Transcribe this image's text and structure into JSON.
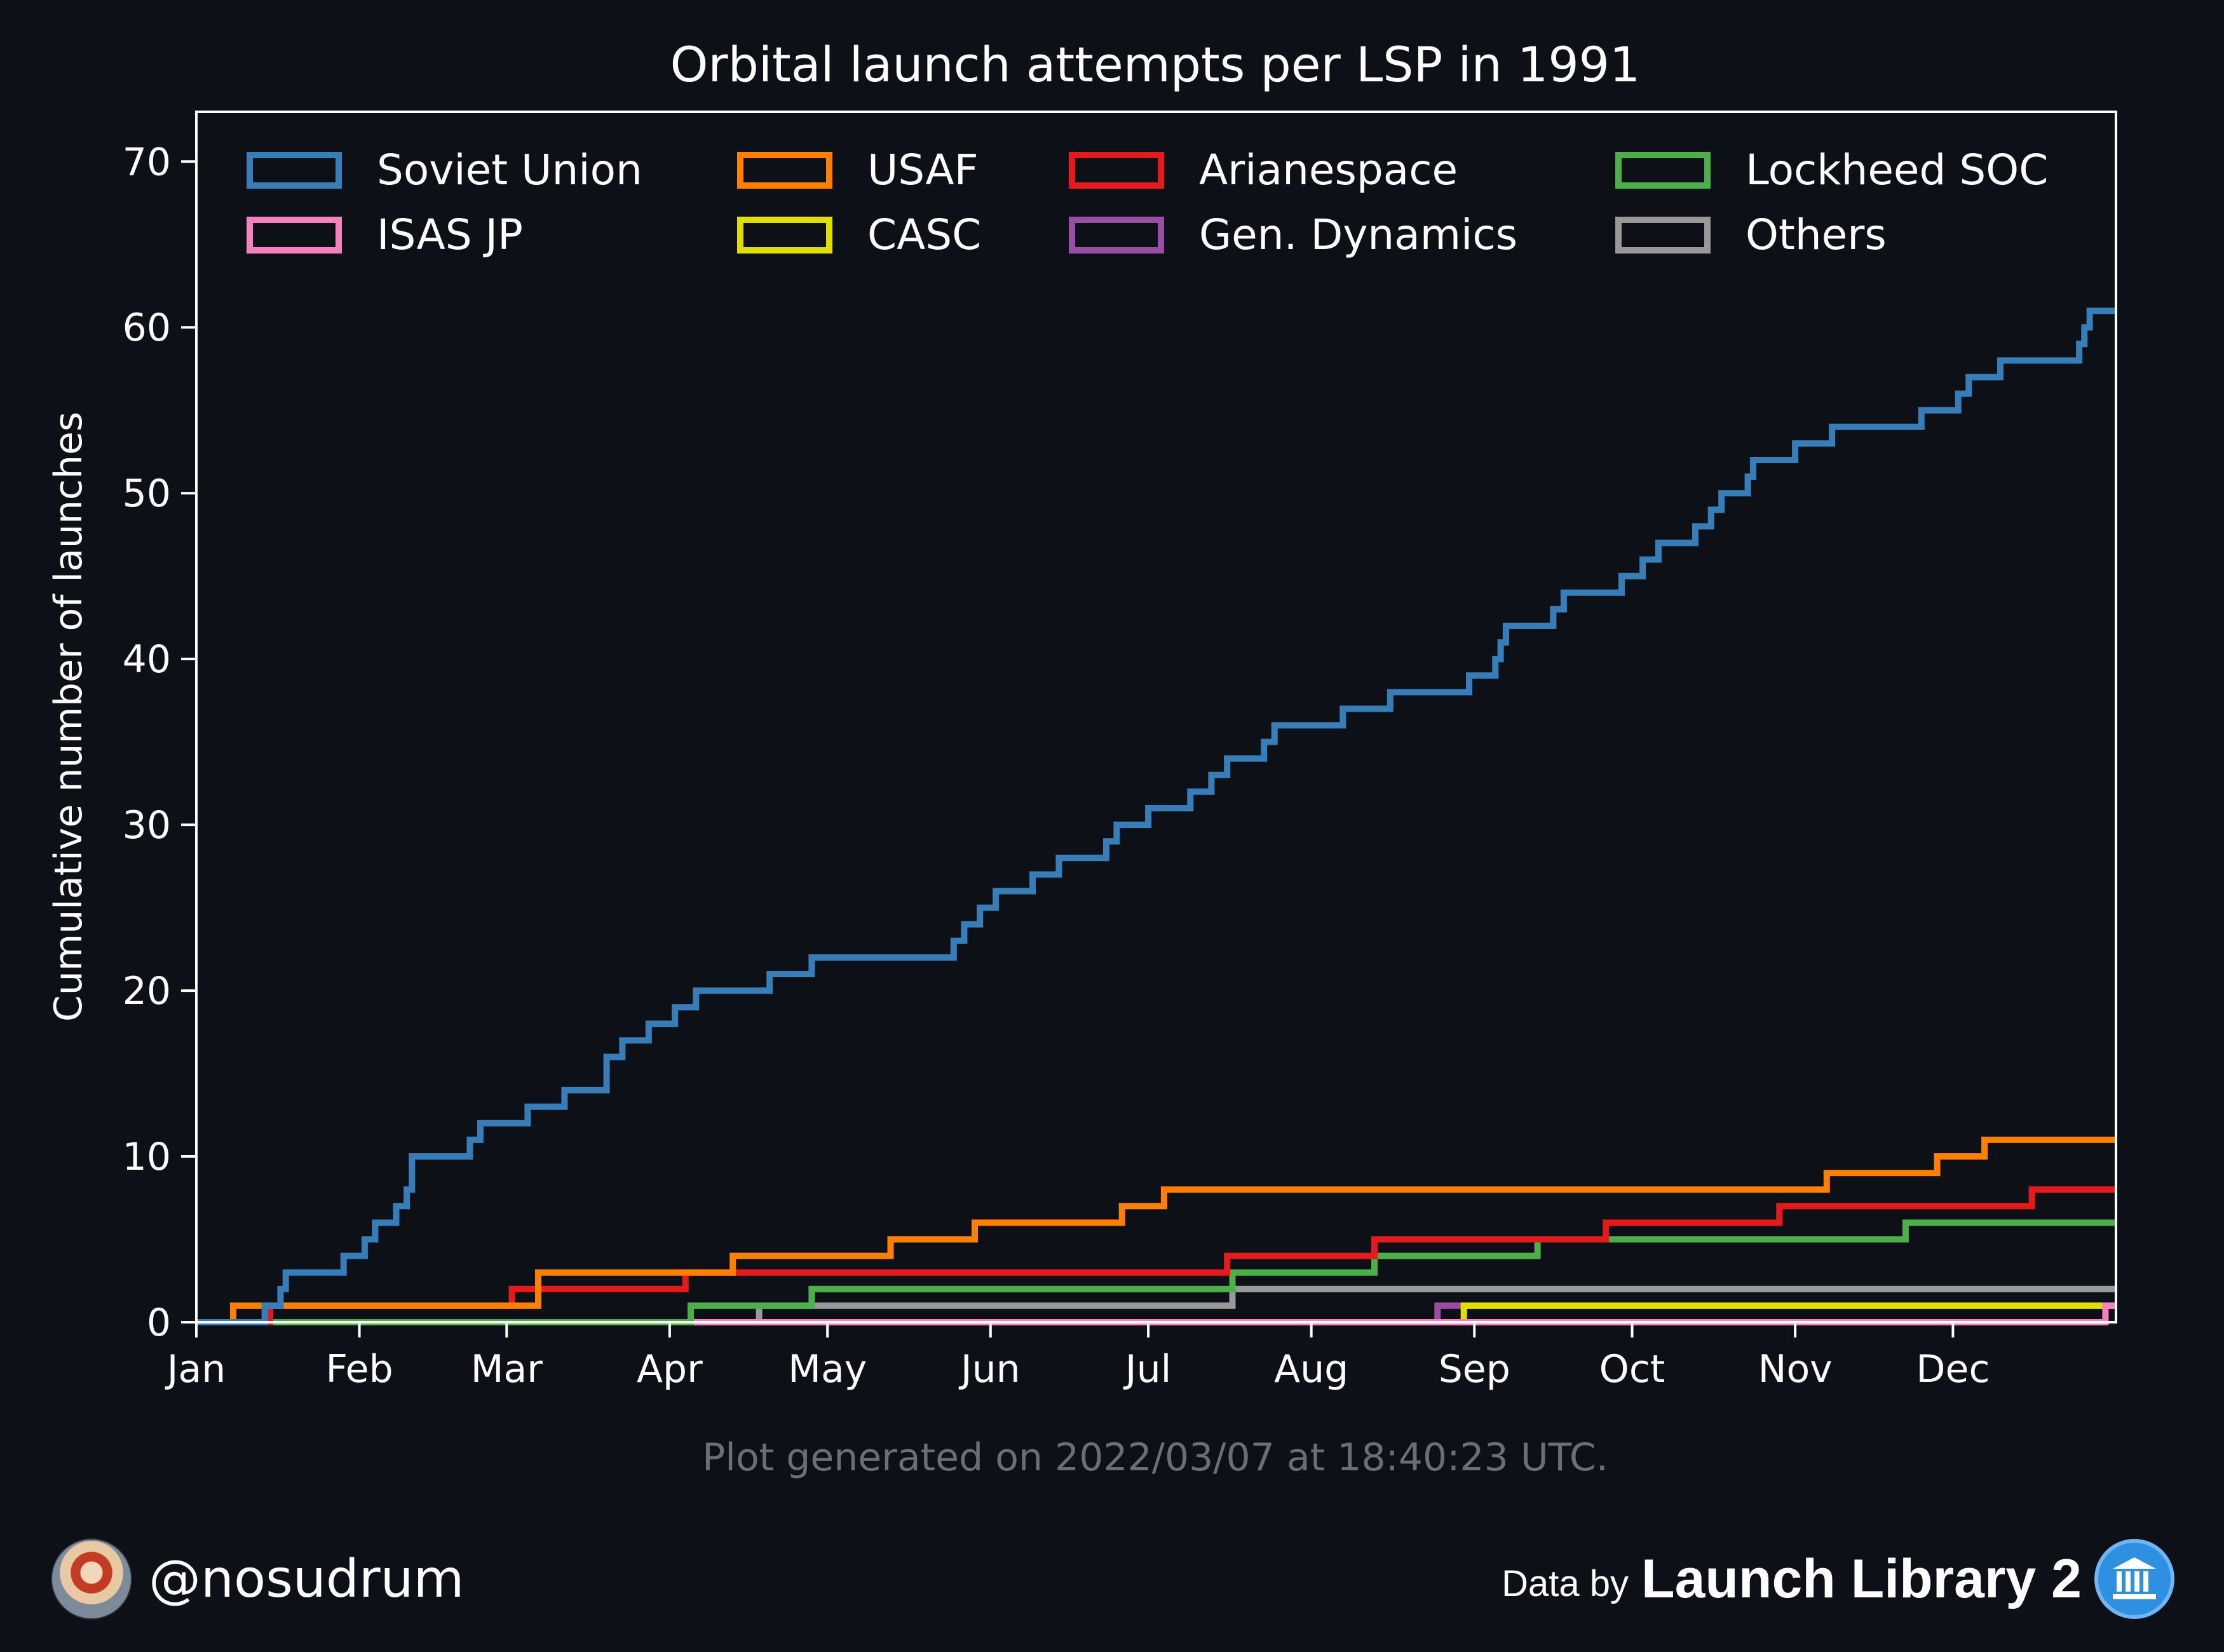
{
  "chart_data": {
    "type": "line",
    "step": true,
    "title": "Orbital launch attempts per LSP in 1991",
    "ylabel": "Cumulative number of launches",
    "xlabel": "",
    "xlim": [
      "1991-01-01",
      "1991-12-31"
    ],
    "ylim": [
      0,
      73
    ],
    "yticks": [
      0,
      10,
      20,
      30,
      40,
      50,
      60,
      70
    ],
    "xticks": [
      {
        "date": "1991-01-01",
        "label": "Jan"
      },
      {
        "date": "1991-02-01",
        "label": "Feb"
      },
      {
        "date": "1991-03-01",
        "label": "Mar"
      },
      {
        "date": "1991-04-01",
        "label": "Apr"
      },
      {
        "date": "1991-05-01",
        "label": "May"
      },
      {
        "date": "1991-06-01",
        "label": "Jun"
      },
      {
        "date": "1991-07-01",
        "label": "Jul"
      },
      {
        "date": "1991-08-01",
        "label": "Aug"
      },
      {
        "date": "1991-09-01",
        "label": "Sep"
      },
      {
        "date": "1991-10-01",
        "label": "Oct"
      },
      {
        "date": "1991-11-01",
        "label": "Nov"
      },
      {
        "date": "1991-12-01",
        "label": "Dec"
      }
    ],
    "grid": false,
    "legend_position": "top",
    "series": [
      {
        "name": "Soviet Union",
        "color": "#377eb8",
        "steps": [
          [
            "1991-01-14",
            1
          ],
          [
            "1991-01-17",
            2
          ],
          [
            "1991-01-18",
            3
          ],
          [
            "1991-01-29",
            4
          ],
          [
            "1991-02-02",
            5
          ],
          [
            "1991-02-04",
            6
          ],
          [
            "1991-02-08",
            7
          ],
          [
            "1991-02-10",
            8
          ],
          [
            "1991-02-11",
            10
          ],
          [
            "1991-02-22",
            11
          ],
          [
            "1991-02-24",
            12
          ],
          [
            "1991-03-05",
            13
          ],
          [
            "1991-03-12",
            14
          ],
          [
            "1991-03-20",
            16
          ],
          [
            "1991-03-23",
            17
          ],
          [
            "1991-03-28",
            18
          ],
          [
            "1991-04-02",
            19
          ],
          [
            "1991-04-06",
            20
          ],
          [
            "1991-04-20",
            21
          ],
          [
            "1991-04-28",
            22
          ],
          [
            "1991-05-25",
            23
          ],
          [
            "1991-05-27",
            24
          ],
          [
            "1991-05-30",
            25
          ],
          [
            "1991-06-02",
            26
          ],
          [
            "1991-06-09",
            27
          ],
          [
            "1991-06-14",
            28
          ],
          [
            "1991-06-23",
            29
          ],
          [
            "1991-06-25",
            30
          ],
          [
            "1991-07-01",
            31
          ],
          [
            "1991-07-09",
            32
          ],
          [
            "1991-07-13",
            33
          ],
          [
            "1991-07-16",
            34
          ],
          [
            "1991-07-23",
            35
          ],
          [
            "1991-07-25",
            36
          ],
          [
            "1991-08-07",
            37
          ],
          [
            "1991-08-16",
            38
          ],
          [
            "1991-08-31",
            39
          ],
          [
            "1991-09-05",
            40
          ],
          [
            "1991-09-06",
            41
          ],
          [
            "1991-09-07",
            42
          ],
          [
            "1991-09-16",
            43
          ],
          [
            "1991-09-18",
            44
          ],
          [
            "1991-09-29",
            45
          ],
          [
            "1991-10-03",
            46
          ],
          [
            "1991-10-06",
            47
          ],
          [
            "1991-10-13",
            48
          ],
          [
            "1991-10-16",
            49
          ],
          [
            "1991-10-18",
            50
          ],
          [
            "1991-10-23",
            51
          ],
          [
            "1991-10-24",
            52
          ],
          [
            "1991-11-01",
            53
          ],
          [
            "1991-11-08",
            54
          ],
          [
            "1991-11-25",
            55
          ],
          [
            "1991-12-02",
            56
          ],
          [
            "1991-12-04",
            57
          ],
          [
            "1991-12-10",
            58
          ],
          [
            "1991-12-25",
            59
          ],
          [
            "1991-12-26",
            60
          ],
          [
            "1991-12-27",
            61
          ]
        ]
      },
      {
        "name": "USAF",
        "color": "#ff7f00",
        "steps": [
          [
            "1991-01-08",
            1
          ],
          [
            "1991-03-07",
            3
          ],
          [
            "1991-04-13",
            4
          ],
          [
            "1991-05-13",
            5
          ],
          [
            "1991-05-29",
            6
          ],
          [
            "1991-06-26",
            7
          ],
          [
            "1991-07-04",
            8
          ],
          [
            "1991-11-07",
            9
          ],
          [
            "1991-11-28",
            10
          ],
          [
            "1991-12-07",
            11
          ]
        ]
      },
      {
        "name": "Arianespace",
        "color": "#e41a1c",
        "steps": [
          [
            "1991-01-15",
            1
          ],
          [
            "1991-03-02",
            2
          ],
          [
            "1991-04-04",
            3
          ],
          [
            "1991-07-16",
            4
          ],
          [
            "1991-08-13",
            5
          ],
          [
            "1991-09-26",
            6
          ],
          [
            "1991-10-29",
            7
          ],
          [
            "1991-12-16",
            8
          ]
        ]
      },
      {
        "name": "Lockheed SOC",
        "color": "#4daf4a",
        "steps": [
          [
            "1991-04-05",
            1
          ],
          [
            "1991-04-28",
            2
          ],
          [
            "1991-06-04",
            2
          ],
          [
            "1991-07-17",
            3
          ],
          [
            "1991-07-29",
            3
          ],
          [
            "1991-08-13",
            4
          ],
          [
            "1991-09-13",
            5
          ],
          [
            "1991-11-22",
            6
          ]
        ]
      },
      {
        "name": "ISAS JP",
        "color": "#f781bf",
        "steps": [
          [
            "1991-12-30",
            1
          ]
        ]
      },
      {
        "name": "CASC",
        "color": "#dede00",
        "steps": [
          [
            "1991-08-30",
            1
          ]
        ]
      },
      {
        "name": "Gen. Dynamics",
        "color": "#984ea3",
        "steps": [
          [
            "1991-08-25",
            1
          ]
        ]
      },
      {
        "name": "Others",
        "color": "#999999",
        "steps": [
          [
            "1991-04-18",
            1
          ],
          [
            "1991-07-17",
            2
          ]
        ]
      }
    ]
  },
  "footer": {
    "generated": "Plot generated on 2022/03/07 at 18:40:23 UTC.",
    "handle": "@nosudrum",
    "data_by": "Data by",
    "source_name": "Launch Library 2"
  },
  "colors": {
    "background": "#0d1017",
    "axes": "#ffffff",
    "footer_text": "#6b6e73"
  },
  "icons": {
    "avatar": "avatar-icon",
    "source_logo": "launch-library-logo-icon"
  }
}
